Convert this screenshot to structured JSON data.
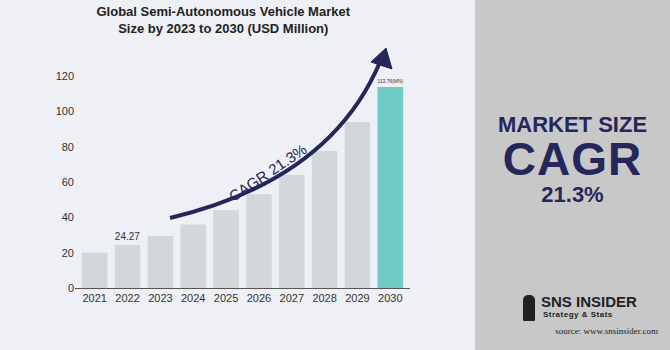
{
  "chart_data": {
    "type": "bar",
    "title": "Global Semi-Autonomous Vehicle Market Size by 2023 to 2030 (USD Million)",
    "categories": [
      "2021",
      "2022",
      "2023",
      "2024",
      "2025",
      "2026",
      "2027",
      "2028",
      "2029",
      "2030"
    ],
    "values": [
      20,
      24.27,
      29.5,
      36,
      44,
      53,
      64,
      77.5,
      94,
      113.76
    ],
    "value_labels": [
      null,
      "24.27",
      null,
      null,
      null,
      null,
      null,
      null,
      null,
      "113.76(MN)"
    ],
    "colors": [
      "#d3d6da",
      "#d3d6da",
      "#d3d6da",
      "#d3d6da",
      "#d3d6da",
      "#d3d6da",
      "#d3d6da",
      "#d3d6da",
      "#d3d6da",
      "#6ecbc6"
    ],
    "ylim": [
      0,
      120
    ],
    "yticks": [
      0,
      20,
      40,
      60,
      80,
      100,
      120
    ],
    "grid": false,
    "annotations": [
      "CAGR 21.3%"
    ]
  },
  "panel": {
    "heading": "MARKET SIZE",
    "big": "CAGR",
    "value": "21.3%",
    "brand": "SNS INSIDER",
    "tagline": "Strategy & Stats",
    "source": "source: www.snsinsider.com"
  }
}
